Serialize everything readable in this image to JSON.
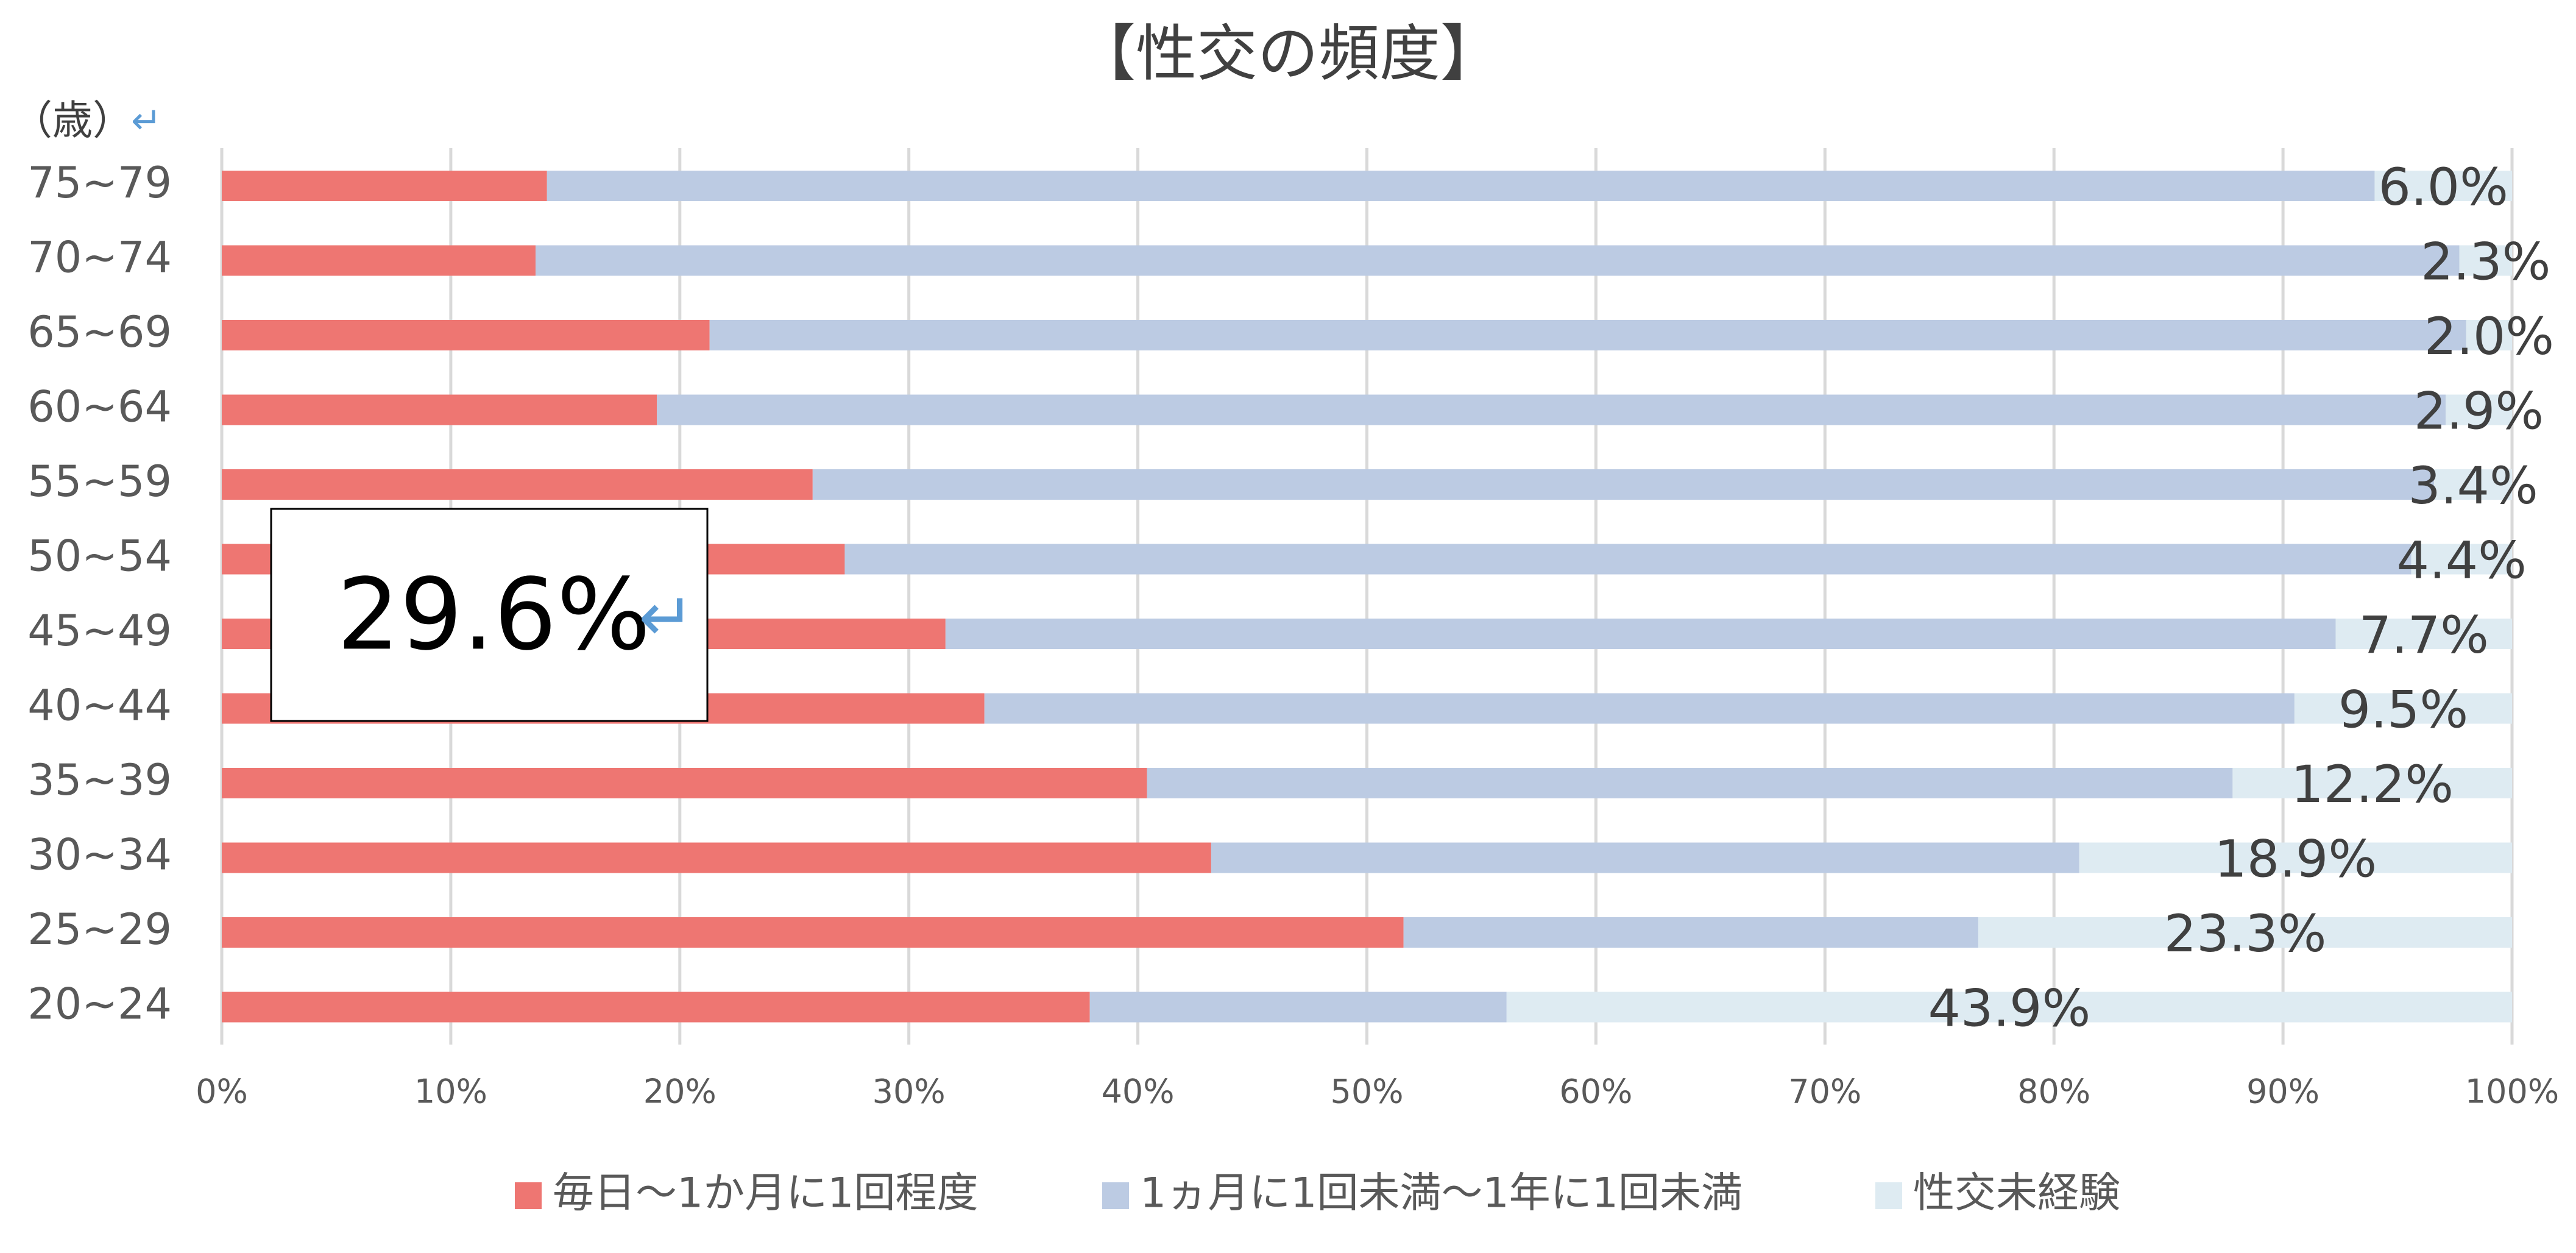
{
  "chart_data": {
    "type": "stacked-bar-horizontal",
    "title": "【性交の頻度】",
    "y_axis_label": "（歳）",
    "return_mark": "↵",
    "annotation": "29.6%",
    "categories": [
      "20~24",
      "25~29",
      "30~34",
      "35~39",
      "40~44",
      "45~49",
      "50~54",
      "55~59",
      "60~64",
      "65~69",
      "70~74",
      "75~79"
    ],
    "series": [
      {
        "name": "毎日～1か月に1回程度",
        "color": "#ee7672",
        "values": [
          37.9,
          51.6,
          43.2,
          40.4,
          33.3,
          31.6,
          27.2,
          25.8,
          19.0,
          21.3,
          13.7,
          14.2
        ]
      },
      {
        "name": "1ヵ月に1回未満～1年に1回未満",
        "color": "#bccbe3",
        "values": [
          18.2,
          25.1,
          37.9,
          47.4,
          57.2,
          60.7,
          68.4,
          70.8,
          78.1,
          76.7,
          84.0,
          79.8
        ]
      },
      {
        "name": "性交未経験",
        "color": "#deebf2",
        "values": [
          43.9,
          23.3,
          18.9,
          12.2,
          9.5,
          7.7,
          4.4,
          3.4,
          2.9,
          2.0,
          2.3,
          6.0
        ],
        "value_labels": [
          "43.9%",
          "23.3%",
          "18.9%",
          "12.2%",
          "9.5%",
          "7.7%",
          "4.4%",
          "3.4%",
          "2.9%",
          "2.0%",
          "2.3%",
          "6.0%"
        ]
      }
    ],
    "xlim": [
      0,
      100
    ],
    "xticks": [
      {
        "value": 0,
        "label": "0%"
      },
      {
        "value": 10,
        "label": "10%"
      },
      {
        "value": 20,
        "label": "20%"
      },
      {
        "value": 30,
        "label": "30%"
      },
      {
        "value": 40,
        "label": "40%"
      },
      {
        "value": 50,
        "label": "50%"
      },
      {
        "value": 60,
        "label": "60%"
      },
      {
        "value": 70,
        "label": "70%"
      },
      {
        "value": 80,
        "label": "80%"
      },
      {
        "value": 90,
        "label": "90%"
      },
      {
        "value": 100,
        "label": "100%"
      }
    ],
    "grid": true,
    "legend": "bottom"
  }
}
